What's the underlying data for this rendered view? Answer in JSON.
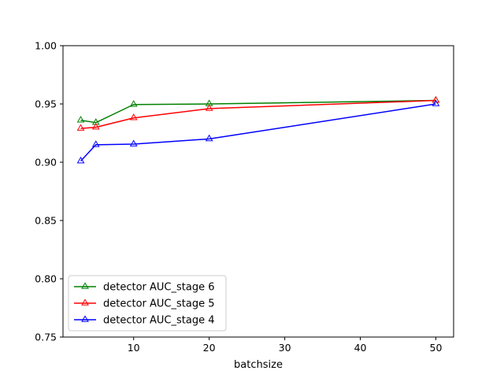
{
  "chart_data": {
    "type": "line",
    "title": "",
    "xlabel": "batchsize",
    "ylabel": "",
    "xlim": [
      0.65,
      52.35
    ],
    "ylim": [
      0.75,
      1.0
    ],
    "xticks": [
      10,
      20,
      30,
      40,
      50
    ],
    "yticks": [
      0.75,
      0.8,
      0.85,
      0.9,
      0.95,
      1.0
    ],
    "xtick_labels": [
      "10",
      "20",
      "30",
      "40",
      "50"
    ],
    "ytick_labels": [
      "0.75",
      "0.80",
      "0.85",
      "0.90",
      "0.95",
      "1.00"
    ],
    "grid": false,
    "legend_position": "lower-left",
    "marker": "triangle-up-hollow",
    "series": [
      {
        "name": "detector AUC_stage 6",
        "color": "#008000",
        "x": [
          3,
          5,
          10,
          20,
          50
        ],
        "y": [
          0.936,
          0.934,
          0.9495,
          0.95,
          0.953
        ]
      },
      {
        "name": "detector AUC_stage 5",
        "color": "#ff0000",
        "x": [
          3,
          5,
          10,
          20,
          50
        ],
        "y": [
          0.929,
          0.93,
          0.938,
          0.946,
          0.953
        ]
      },
      {
        "name": "detector AUC_stage 4",
        "color": "#0000ff",
        "x": [
          3,
          5,
          10,
          20,
          50
        ],
        "y": [
          0.901,
          0.915,
          0.9155,
          0.92,
          0.95
        ]
      }
    ]
  }
}
